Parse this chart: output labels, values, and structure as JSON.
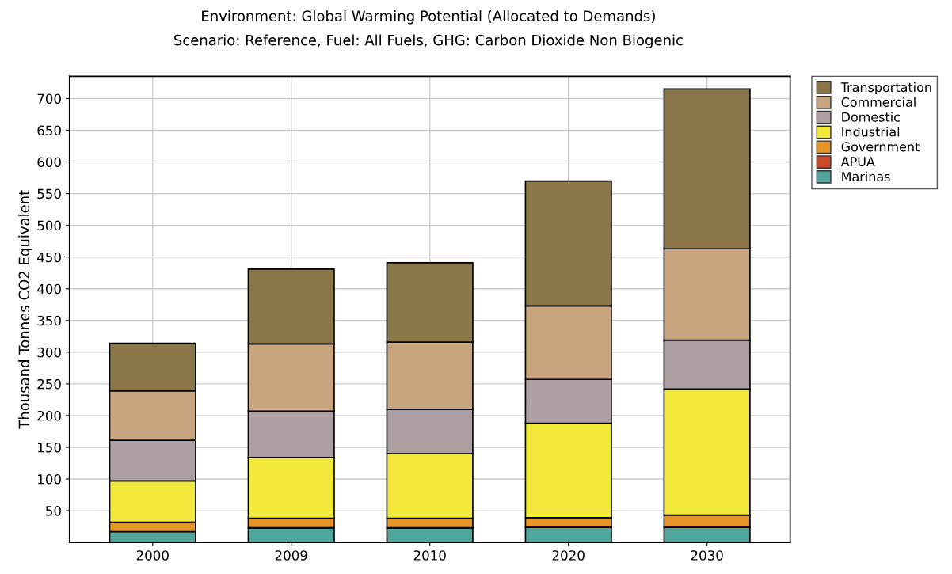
{
  "chart_data": {
    "type": "bar",
    "title": "Environment: Global Warming Potential (Allocated to Demands)",
    "subtitle": "Scenario: Reference, Fuel: All Fuels, GHG: Carbon Dioxide Non Biogenic",
    "ylabel": "Thousand Tonnes CO2 Equivalent",
    "categories": [
      "2000",
      "2009",
      "2010",
      "2020",
      "2030"
    ],
    "stacked": true,
    "legend": "top right",
    "grid": true,
    "ylim": [
      0,
      735
    ],
    "yticks": [
      50,
      100,
      150,
      200,
      250,
      300,
      350,
      400,
      450,
      500,
      550,
      600,
      650,
      700
    ],
    "series": [
      {
        "name": "Marinas",
        "color": "#52a59c",
        "values": [
          17,
          23,
          23,
          24,
          24
        ]
      },
      {
        "name": "APUA",
        "color": "#c84b2a",
        "values": [
          null,
          null,
          null,
          null,
          null
        ]
      },
      {
        "name": "Government",
        "color": "#e59427",
        "values": [
          15,
          15,
          15,
          15,
          19
        ]
      },
      {
        "name": "Industrial",
        "color": "#f2e93c",
        "values": [
          65,
          96,
          102,
          149,
          199
        ]
      },
      {
        "name": "Domestic",
        "color": "#ae9fa3",
        "values": [
          64,
          73,
          70,
          69,
          77
        ]
      },
      {
        "name": "Commercial",
        "color": "#c8a57f",
        "values": [
          78,
          106,
          106,
          116,
          144
        ]
      },
      {
        "name": "Transportation",
        "color": "#8b7649",
        "values": [
          75,
          118,
          125,
          197,
          252
        ]
      }
    ]
  }
}
